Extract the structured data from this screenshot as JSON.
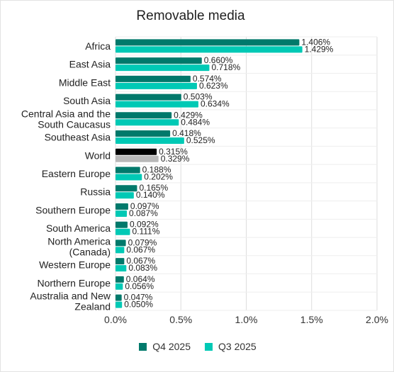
{
  "chart_data": {
    "type": "bar",
    "orientation": "horizontal",
    "title": "Removable media",
    "xlabel": "",
    "ylabel": "",
    "xlim": [
      0,
      2.0
    ],
    "x_ticks": [
      "0.0%",
      "0.5%",
      "1.0%",
      "1.5%",
      "2.0%"
    ],
    "grid": true,
    "legend_position": "bottom",
    "categories": [
      [
        "Africa"
      ],
      [
        "East Asia"
      ],
      [
        "Middle East"
      ],
      [
        "South Asia"
      ],
      [
        "Central Asia and the",
        "South Caucasus"
      ],
      [
        "Southeast Asia"
      ],
      [
        "World"
      ],
      [
        "Eastern Europe"
      ],
      [
        "Russia"
      ],
      [
        "Southern Europe"
      ],
      [
        "South America"
      ],
      [
        "North America",
        "(Canada)"
      ],
      [
        "Western Europe"
      ],
      [
        "Northern Europe"
      ],
      [
        "Australia and New",
        "Zealand"
      ]
    ],
    "series": [
      {
        "name": "Q4 2025",
        "color": "#00796b",
        "values": [
          1.406,
          0.66,
          0.574,
          0.503,
          0.429,
          0.418,
          0.315,
          0.188,
          0.165,
          0.097,
          0.092,
          0.079,
          0.067,
          0.064,
          0.047
        ],
        "labels": [
          "1.406%",
          "0.660%",
          "0.574%",
          "0.503%",
          "0.429%",
          "0.418%",
          "0.315%",
          "0.188%",
          "0.165%",
          "0.097%",
          "0.092%",
          "0.079%",
          "0.067%",
          "0.064%",
          "0.047%"
        ]
      },
      {
        "name": "Q3 2025",
        "color": "#00c9b5",
        "values": [
          1.429,
          0.718,
          0.623,
          0.634,
          0.484,
          0.525,
          0.329,
          0.202,
          0.14,
          0.087,
          0.111,
          0.067,
          0.083,
          0.056,
          0.05
        ],
        "labels": [
          "1.429%",
          "0.718%",
          "0.623%",
          "0.634%",
          "0.484%",
          "0.525%",
          "0.329%",
          "0.202%",
          "0.140%",
          "0.087%",
          "0.111%",
          "0.067%",
          "0.083%",
          "0.056%",
          "0.050%"
        ]
      }
    ],
    "highlight": {
      "category_index": 6,
      "colors": [
        "#000000",
        "#b8b8b8"
      ]
    }
  },
  "legend": {
    "q4": {
      "label": "Q4 2025",
      "color": "#00796b"
    },
    "q3": {
      "label": "Q3 2025",
      "color": "#00c9b5"
    }
  }
}
